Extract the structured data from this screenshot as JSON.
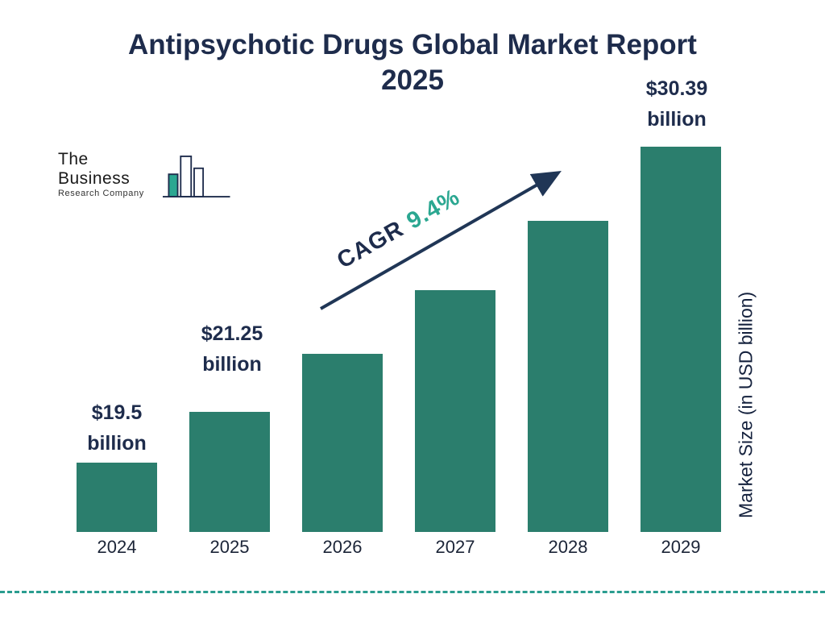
{
  "title": {
    "line1": "Antipsychotic Drugs Global Market Report",
    "line2": "2025"
  },
  "logo": {
    "name_line1": "The Business",
    "name_line2": "Research Company"
  },
  "chart_data": {
    "type": "bar",
    "title": "Antipsychotic Drugs Global Market Report 2025",
    "categories": [
      "2024",
      "2025",
      "2026",
      "2027",
      "2028",
      "2029"
    ],
    "values": [
      19.5,
      21.25,
      23.25,
      25.43,
      27.82,
      30.39
    ],
    "estimated_indices": [
      2,
      3,
      4
    ],
    "data_labels": [
      {
        "category": "2024",
        "value_text": "$19.5",
        "unit_text": "billion"
      },
      {
        "category": "2025",
        "value_text": "$21.25",
        "unit_text": "billion"
      },
      {
        "category": "2029",
        "value_text": "$30.39",
        "unit_text": "billion"
      }
    ],
    "annotation": {
      "cagr_label": "CAGR",
      "cagr_value": "9.4%"
    },
    "xlabel": "",
    "ylabel": "Market Size (in USD billion)",
    "legend": "none",
    "grid": false,
    "bar_color": "#2b7e6d",
    "accent_teal": "#2ba791",
    "navy": "#1e2c4c",
    "dashed_line_color": "#2a9d8f"
  }
}
